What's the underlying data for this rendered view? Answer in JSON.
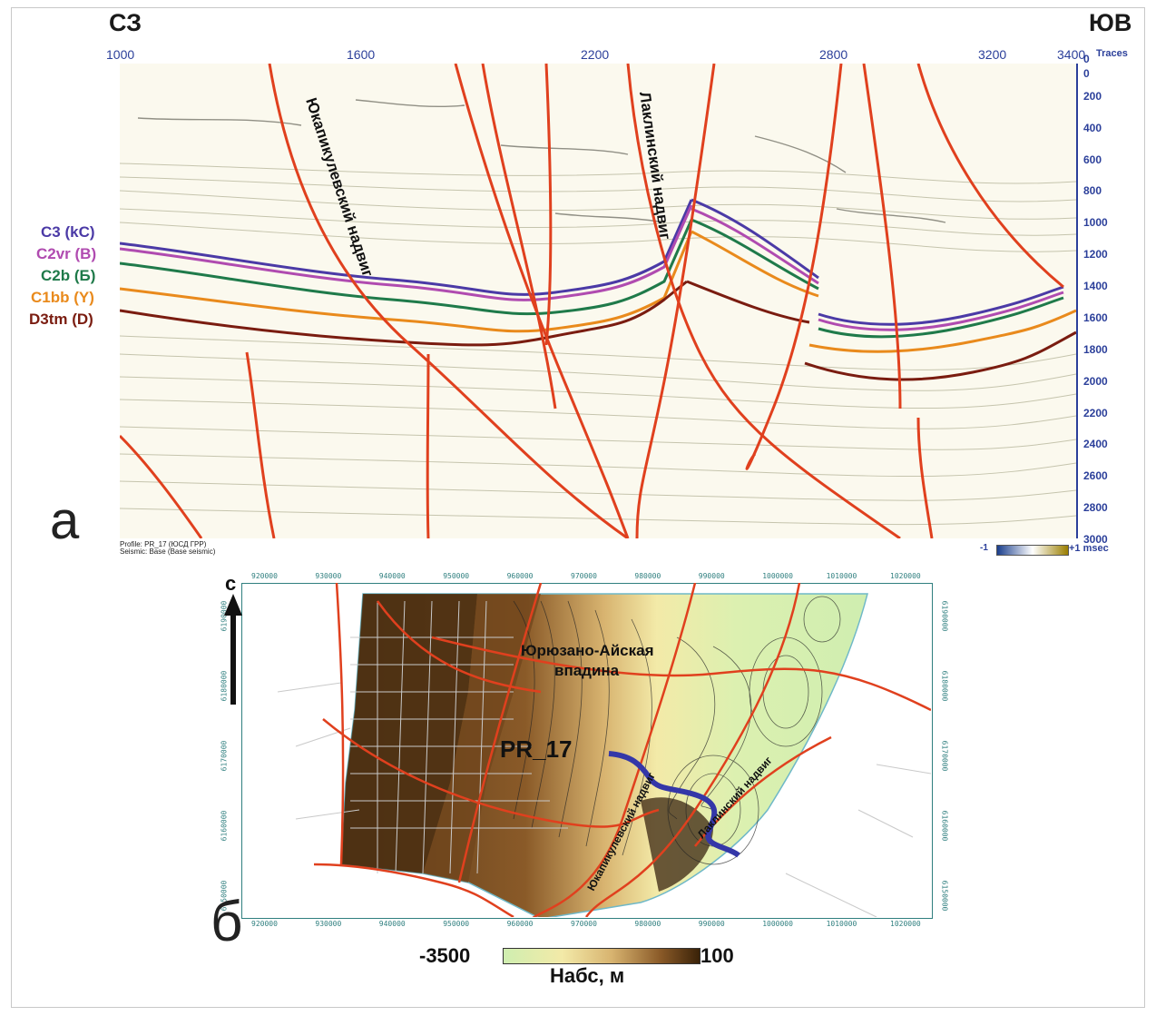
{
  "panel_a": {
    "letter": "а",
    "dir_left": "СЗ",
    "dir_right": "ЮВ",
    "trace_ticks": [
      "1000",
      "1600",
      "2200",
      "2800",
      "3200",
      "3400"
    ],
    "trace_unit": "Traces",
    "depth_ticks": [
      "0",
      "0",
      "200",
      "400",
      "600",
      "800",
      "1000",
      "1200",
      "1400",
      "1600",
      "1800",
      "2000",
      "2200",
      "2400",
      "2600",
      "2800",
      "3000"
    ],
    "horizons": [
      {
        "label": "C3 (kC)",
        "color": "#4b3aa6"
      },
      {
        "label": "C2vr (B)",
        "color": "#b04bb0"
      },
      {
        "label": "C2b (Б)",
        "color": "#1f7a4a"
      },
      {
        "label": "C1bb (Y)",
        "color": "#e98a1c"
      },
      {
        "label": "D3tm (D)",
        "color": "#7a1c10"
      }
    ],
    "fault_left": "Юкапикулевский надвиг",
    "fault_right": "Лаклинский надвиг",
    "profile_line": "Profile: PR_17 (ЮСД ГРР)",
    "seismic_line": "Seismic: Base (Base seismic)",
    "colorbar_min": "-1",
    "colorbar_max": "+1 msec"
  },
  "panel_b": {
    "letter": "б",
    "north": "с",
    "x_ticks": [
      "920000",
      "930000",
      "940000",
      "950000",
      "960000",
      "970000",
      "980000",
      "990000",
      "1000000",
      "1010000",
      "1020000"
    ],
    "y_ticks": [
      "6150000",
      "6160000",
      "6170000",
      "6180000",
      "6190000"
    ],
    "basin_line1": "Юрюзано-Айская",
    "basin_line2": "впадина",
    "profile": "PR_17",
    "fault_left": "Юкапикулевский надвиг",
    "fault_right": "Лаклинский надвиг",
    "scale_min": "-3500",
    "scale_max": "100",
    "scale_title": "Набс, м"
  },
  "colors": {
    "fault": "#e0401e",
    "profile": "#3437a8",
    "axis": "#2b3f9a",
    "map_axis": "#2f7f7f"
  }
}
